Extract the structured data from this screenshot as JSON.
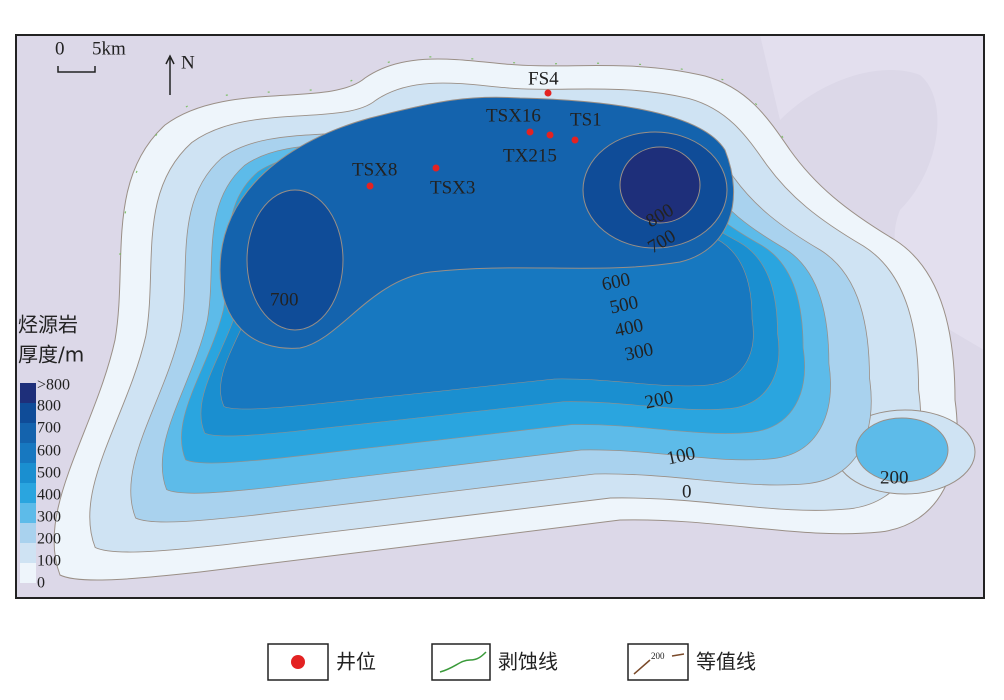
{
  "scale_bar": {
    "zero": "0",
    "distance": "5km"
  },
  "north": "N",
  "wells": [
    {
      "label": "FS4"
    },
    {
      "label": "TSX16"
    },
    {
      "label": "TS1"
    },
    {
      "label": "TX215"
    },
    {
      "label": "TSX8"
    },
    {
      "label": "TSX3"
    }
  ],
  "contour_labels": [
    "800",
    "700",
    "700",
    "600",
    "500",
    "400",
    "300",
    "200",
    "100",
    "0",
    "200"
  ],
  "thickness_legend": {
    "title_line1": "烃源岩",
    "title_line2": "厚度/m",
    "items": [
      ">800",
      "800",
      "700",
      "600",
      "500",
      "400",
      "300",
      "200",
      "100",
      "0"
    ]
  },
  "symbol_legend": [
    {
      "label": "井位"
    },
    {
      "label": "剥蚀线"
    },
    {
      "label": "等值线",
      "sample": "200"
    }
  ]
}
